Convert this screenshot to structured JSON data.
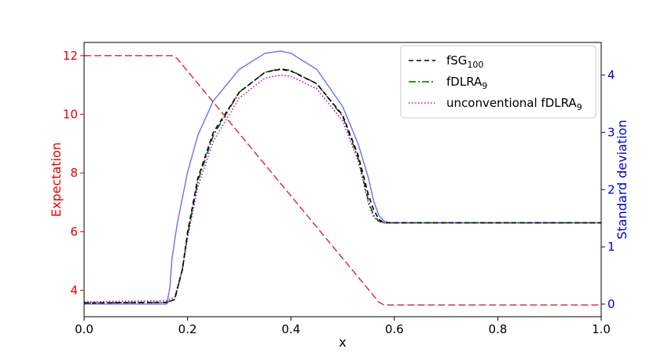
{
  "chart_data": {
    "type": "line",
    "xlabel": "x",
    "ylabel_left": "Expectation",
    "ylabel_right": "Standard deviation",
    "xlim": [
      0.0,
      1.0
    ],
    "ylim_left": [
      3.1,
      12.45
    ],
    "ylim_right": [
      -0.22,
      4.57
    ],
    "x_ticks": [
      "0.0",
      "0.2",
      "0.4",
      "0.6",
      "0.8",
      "1.0"
    ],
    "y_ticks_left": [
      "4",
      "6",
      "8",
      "10",
      "12"
    ],
    "y_ticks_right": [
      "0",
      "1",
      "2",
      "3",
      "4"
    ],
    "grid": false,
    "legend_position": "top-right",
    "colors": {
      "left_axis": "#e00000",
      "right_axis": "#0000cc",
      "expectation_line": "#d62728",
      "fsg_line": "#000000",
      "fdlra_line": "#006400",
      "unconventional_line": "#cc00cc",
      "std_reference_line": "#6f6fe8"
    },
    "legend": [
      {
        "key": "fsg",
        "base": "fSG",
        "sub": "100",
        "style": "dashed",
        "color": "#000000"
      },
      {
        "key": "fdlra",
        "base": "fDLRA",
        "sub": "9",
        "style": "dashdot",
        "color": "#006400"
      },
      {
        "key": "unconv",
        "base": "unconventional fDLRA",
        "sub": "9",
        "style": "dotted",
        "color": "#cc00cc"
      }
    ],
    "series": [
      {
        "key": "expectation",
        "axis": "left",
        "x": [
          0.0,
          0.17,
          0.18,
          0.57,
          0.58,
          1.0
        ],
        "y": [
          12.0,
          12.0,
          11.9,
          3.6,
          3.5,
          3.5
        ]
      },
      {
        "key": "fsg",
        "axis": "right",
        "x": [
          0.0,
          0.16,
          0.175,
          0.19,
          0.2,
          0.22,
          0.25,
          0.3,
          0.35,
          0.38,
          0.4,
          0.45,
          0.5,
          0.53,
          0.55,
          0.56,
          0.57,
          0.58,
          0.6,
          1.0
        ],
        "y": [
          0.02,
          0.03,
          0.08,
          0.6,
          1.25,
          2.2,
          3.0,
          3.7,
          4.05,
          4.1,
          4.07,
          3.85,
          3.3,
          2.6,
          1.9,
          1.65,
          1.48,
          1.42,
          1.42,
          1.42
        ]
      },
      {
        "key": "fdlra",
        "axis": "right",
        "x": [
          0.0,
          0.16,
          0.175,
          0.19,
          0.2,
          0.22,
          0.25,
          0.3,
          0.35,
          0.38,
          0.4,
          0.45,
          0.5,
          0.53,
          0.55,
          0.56,
          0.57,
          0.58,
          0.6,
          1.0
        ],
        "y": [
          0.02,
          0.03,
          0.08,
          0.6,
          1.2,
          2.15,
          2.95,
          3.7,
          4.05,
          4.11,
          4.08,
          3.85,
          3.28,
          2.55,
          1.8,
          1.55,
          1.45,
          1.42,
          1.42,
          1.42
        ]
      },
      {
        "key": "unconv",
        "axis": "right",
        "x": [
          0.0,
          0.16,
          0.175,
          0.19,
          0.2,
          0.22,
          0.25,
          0.3,
          0.35,
          0.38,
          0.4,
          0.45,
          0.5,
          0.53,
          0.55,
          0.56,
          0.57,
          0.58,
          0.6,
          1.0
        ],
        "y": [
          0.04,
          0.06,
          0.12,
          0.6,
          1.15,
          2.05,
          2.85,
          3.6,
          3.95,
          4.0,
          3.98,
          3.76,
          3.2,
          2.5,
          1.75,
          1.52,
          1.44,
          1.42,
          1.42,
          1.42
        ]
      },
      {
        "key": "std_reference",
        "axis": "right",
        "x": [
          0.0,
          0.16,
          0.166,
          0.17,
          0.175,
          0.18,
          0.2,
          0.22,
          0.25,
          0.3,
          0.35,
          0.38,
          0.4,
          0.45,
          0.5,
          0.53,
          0.55,
          0.56,
          0.57,
          0.58,
          0.59,
          0.6,
          1.0
        ],
        "y": [
          0.0,
          0.0,
          0.3,
          0.8,
          1.1,
          1.4,
          2.3,
          2.95,
          3.55,
          4.1,
          4.38,
          4.42,
          4.38,
          4.1,
          3.45,
          2.8,
          2.2,
          1.8,
          1.55,
          1.45,
          1.42,
          1.42,
          1.42
        ]
      }
    ]
  }
}
